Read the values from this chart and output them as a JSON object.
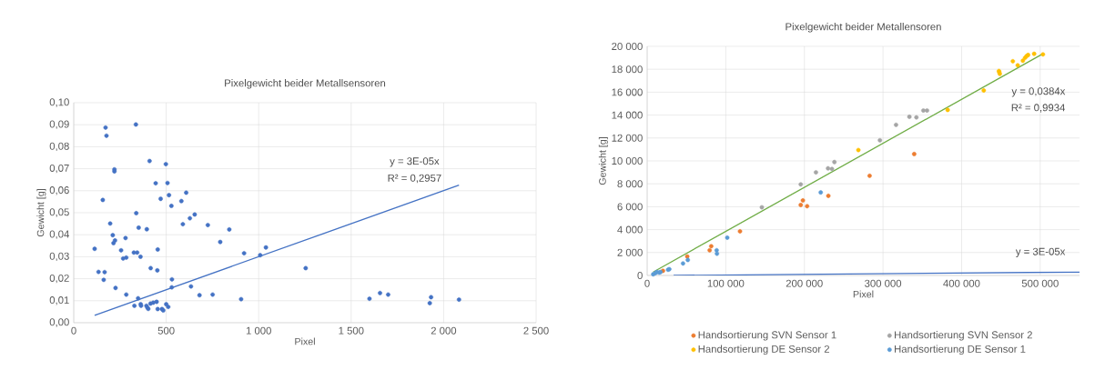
{
  "chart_data": [
    {
      "type": "scatter",
      "title": "Pixelgewicht beider Metallsensoren",
      "xlabel": "Pixel",
      "ylabel": "Gewicht [g]",
      "xlim": [
        0,
        2500
      ],
      "ylim": [
        0,
        0.1
      ],
      "xticks": [
        0,
        500,
        {
          "value": 1000,
          "label": "1 000"
        },
        {
          "value": 1500,
          "label": "1 500"
        },
        {
          "value": 2000,
          "label": "2 000"
        },
        {
          "value": 2500,
          "label": "2 500"
        }
      ],
      "yticks": [
        {
          "value": 0,
          "label": "0,00"
        },
        {
          "value": 0.01,
          "label": "0,01"
        },
        {
          "value": 0.02,
          "label": "0,02"
        },
        {
          "value": 0.03,
          "label": "0,03"
        },
        {
          "value": 0.04,
          "label": "0,04"
        },
        {
          "value": 0.05,
          "label": "0,05"
        },
        {
          "value": 0.06,
          "label": "0,06"
        },
        {
          "value": 0.07,
          "label": "0,07"
        },
        {
          "value": 0.08,
          "label": "0,08"
        },
        {
          "value": 0.09,
          "label": "0,09"
        },
        {
          "value": 0.1,
          "label": "0,10"
        }
      ],
      "grid": true,
      "annotations": [
        "y = 3E-05x",
        "R² = 0,2957"
      ],
      "series": [
        {
          "marker": "circle",
          "color": "#4472c4",
          "x": [
            113,
            134,
            157,
            162,
            167,
            172,
            177,
            197,
            211,
            215,
            220,
            220,
            223,
            226,
            256,
            267,
            280,
            284,
            284,
            325,
            328,
            336,
            338,
            343,
            348,
            351,
            361,
            362,
            364,
            393,
            395,
            398,
            403,
            410,
            415,
            416,
            430,
            443,
            448,
            452,
            454,
            454,
            470,
            477,
            484,
            498,
            500,
            507,
            511,
            515,
            528,
            530,
            531,
            582,
            590,
            608,
            628,
            634,
            654,
            680,
            725,
            751,
            792,
            841,
            905,
            921,
            1008,
            1039,
            1254,
            1599,
            1656,
            1700,
            1925,
            1932,
            2083
          ],
          "values": [
            0.0336,
            0.0231,
            0.0558,
            0.0195,
            0.023,
            0.0887,
            0.085,
            0.0451,
            0.0398,
            0.0362,
            0.0697,
            0.0688,
            0.0374,
            0.0158,
            0.0329,
            0.0292,
            0.0385,
            0.0296,
            0.0128,
            0.0319,
            0.0077,
            0.0901,
            0.0498,
            0.0319,
            0.0111,
            0.0432,
            0.03,
            0.0084,
            0.0077,
            0.0077,
            0.0425,
            0.0069,
            0.0063,
            0.0735,
            0.0087,
            0.0248,
            0.0091,
            0.0634,
            0.0095,
            0.0238,
            0.0333,
            0.0062,
            0.0563,
            0.0062,
            0.0056,
            0.0721,
            0.0084,
            0.0635,
            0.0072,
            0.058,
            0.0531,
            0.0161,
            0.0197,
            0.0553,
            0.0448,
            0.0591,
            0.0475,
            0.0165,
            0.0492,
            0.0125,
            0.0444,
            0.0128,
            0.0367,
            0.0424,
            0.0107,
            0.0316,
            0.0307,
            0.0342,
            0.0248,
            0.0109,
            0.0135,
            0.0128,
            0.0089,
            0.0116,
            0.0105
          ]
        },
        {
          "type": "line",
          "marker": "none",
          "color": "#4472c4",
          "x": [
            113,
            2083
          ],
          "values": [
            0.0034,
            0.0625
          ]
        }
      ]
    },
    {
      "type": "scatter",
      "title": "Pixelgewicht beider Metallensoren",
      "xlabel": "Pixel",
      "ylabel": "Gewicht [g]",
      "xlim": [
        0,
        550000
      ],
      "ylim": [
        0,
        20000
      ],
      "xticks": [
        0,
        {
          "value": 100000,
          "label": "100 000"
        },
        {
          "value": 200000,
          "label": "200 000"
        },
        {
          "value": 300000,
          "label": "300 000"
        },
        {
          "value": 400000,
          "label": "400 000"
        },
        {
          "value": 500000,
          "label": "500 000"
        }
      ],
      "yticks": [
        0,
        {
          "value": 2000,
          "label": "2 000"
        },
        {
          "value": 4000,
          "label": "4 000"
        },
        {
          "value": 6000,
          "label": "6 000"
        },
        {
          "value": 8000,
          "label": "8 000"
        },
        {
          "value": 10000,
          "label": "10 000"
        },
        {
          "value": 12000,
          "label": "12 000"
        },
        {
          "value": 14000,
          "label": "14 000"
        },
        {
          "value": 16000,
          "label": "16 000"
        },
        {
          "value": 18000,
          "label": "18 000"
        },
        {
          "value": 20000,
          "label": "20 000"
        }
      ],
      "grid": true,
      "legend": "bottom",
      "annotations": [
        "y = 0,0384x",
        "R² = 0,9934",
        "y = 3E-05x"
      ],
      "series": [
        {
          "marker": "circle",
          "name": "Handsortierung SVN Sensor 1",
          "color": "#ed7d31",
          "x": [
            20100,
            51000,
            79500,
            81500,
            118100,
            195400,
            198100,
            203500,
            230500,
            283000,
            339700
          ],
          "values": [
            400,
            1650,
            2200,
            2550,
            3850,
            6150,
            6550,
            6050,
            6950,
            8700,
            10600
          ]
        },
        {
          "marker": "circle",
          "name": "Handsortierung SVN Sensor 2",
          "color": "#a5a5a5",
          "x": [
            145900,
            195400,
            214700,
            230100,
            235100,
            238200,
            296100,
            316600,
            333600,
            342500,
            351400,
            356000
          ],
          "values": [
            5950,
            7950,
            9000,
            9350,
            9300,
            9900,
            11800,
            13150,
            13850,
            13800,
            14400,
            14400
          ]
        },
        {
          "marker": "circle",
          "name": "Handsortierung DE Sensor 2",
          "color": "#ffc000",
          "x": [
            268700,
            382300,
            428200,
            447500,
            447900,
            448600,
            465200,
            471400,
            478000,
            480700,
            482700,
            484600,
            492300,
            503500
          ],
          "values": [
            10950,
            14450,
            16150,
            17850,
            17750,
            17600,
            18700,
            18350,
            18750,
            19000,
            19150,
            19250,
            19350,
            19300
          ]
        },
        {
          "marker": "circle",
          "name": "Handsortierung DE Sensor 1",
          "color": "#5b9bd5",
          "x": [
            7700,
            10400,
            12400,
            15400,
            17000,
            26600,
            28200,
            45600,
            51700,
            88400,
            88800,
            101900,
            220800
          ],
          "values": [
            100,
            200,
            300,
            250,
            300,
            500,
            550,
            1050,
            1350,
            2200,
            1900,
            3300,
            7250
          ]
        },
        {
          "type": "line",
          "marker": "none",
          "color": "#70ad47",
          "x": [
            7700,
            503500
          ],
          "values": [
            300,
            19350
          ]
        },
        {
          "type": "line",
          "marker": "none",
          "color": "#4472c4",
          "x": [
            33600,
            550000
          ],
          "values": [
            0,
            300
          ]
        }
      ]
    }
  ]
}
